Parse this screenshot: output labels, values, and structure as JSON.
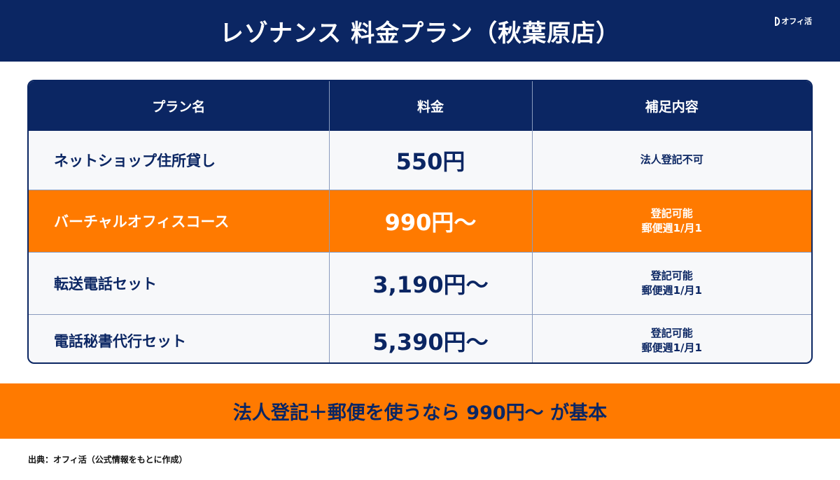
{
  "header": {
    "title": "レゾナンス 料金プラン（秋葉原店）",
    "logo_text": "オフィ活"
  },
  "table": {
    "columns": [
      "プラン名",
      "料金",
      "補足内容"
    ],
    "rows": [
      {
        "plan": "ネットショップ住所貸し",
        "price": "550円",
        "note_lines": [
          "法人登記不可"
        ],
        "highlighted": false
      },
      {
        "plan": "バーチャルオフィスコース",
        "price": "990円〜",
        "note_lines": [
          "登記可能",
          "郵便週1/月1"
        ],
        "highlighted": true
      },
      {
        "plan": "転送電話セット",
        "price": "3,190円〜",
        "note_lines": [
          "登記可能",
          "郵便週1/月1"
        ],
        "highlighted": false
      },
      {
        "plan": "電話秘書代行セット",
        "price": "5,390円〜",
        "note_lines": [
          "登記可能",
          "郵便週1/月1"
        ],
        "highlighted": false
      }
    ]
  },
  "banner": {
    "text": "法人登記＋郵便を使うなら 990円〜 が基本"
  },
  "footer": {
    "source": "出典：オフィ活（公式情報をもとに作成）"
  },
  "colors": {
    "navy": "#0b2663",
    "orange": "#ff7a00",
    "row_bg": "#f7f8fa"
  }
}
